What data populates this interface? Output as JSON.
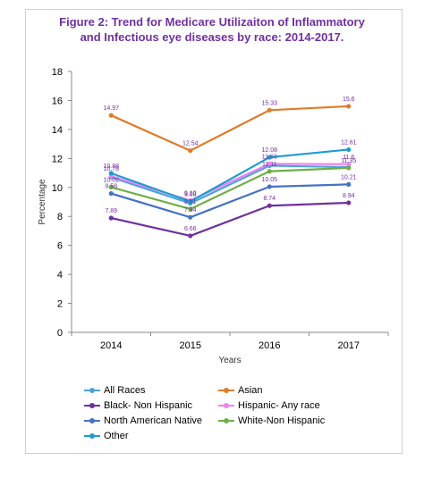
{
  "chart_data": {
    "type": "line",
    "title_lines": [
      "Figure 2: Trend for Medicare Utilizaiton of Inflammatory",
      "and Infectious eye diseases by race: 2014-2017."
    ],
    "xlabel": "Years",
    "ylabel": "Percentage",
    "x": [
      "2014",
      "2015",
      "2016",
      "2017"
    ],
    "ylim": [
      0,
      18
    ],
    "yticks": [
      "0",
      "2",
      "4",
      "6",
      "8",
      "10",
      "12",
      "14",
      "16",
      "18"
    ],
    "grid": false,
    "legend_position": "bottom",
    "series": [
      {
        "name": "All Races",
        "color": "#4aa3d8",
        "values": [
          10.7,
          8.9,
          11.5,
          11.4
        ],
        "labels": [
          "",
          "",
          "",
          ""
        ]
      },
      {
        "name": "Asian",
        "color": "#e07b2a",
        "values": [
          14.97,
          12.54,
          15.33,
          15.6
        ],
        "labels": [
          "14.97",
          "12.54",
          "15.33",
          "15.6"
        ]
      },
      {
        "name": "Black- Non Hispanic",
        "color": "#7030a0",
        "values": [
          7.89,
          6.66,
          8.74,
          8.94
        ],
        "labels": [
          "7.89",
          "6.66",
          "8.74",
          "8.94"
        ]
      },
      {
        "name": "Hispanic- Any race",
        "color": "#ee82ee",
        "values": [
          10.78,
          9.1,
          11.63,
          11.6
        ],
        "labels": [
          "10.78",
          "9.10",
          "11.63",
          "11.6"
        ]
      },
      {
        "name": "North American Native",
        "color": "#4472c4",
        "values": [
          9.58,
          7.94,
          10.05,
          10.21
        ],
        "labels": [
          "9.58",
          "7.94",
          "10.05",
          "10.21"
        ]
      },
      {
        "name": "White-Non Hispanic",
        "color": "#70ad47",
        "values": [
          10.02,
          8.51,
          11.11,
          11.35
        ],
        "labels": [
          "10.02",
          "8.51",
          "11.11",
          "11.35"
        ]
      },
      {
        "name": "Other",
        "color": "#1f9bd1",
        "values": [
          10.98,
          9.03,
          12.08,
          12.61
        ],
        "labels": [
          "10.98",
          "9.03",
          "12.08",
          "12.61"
        ]
      }
    ]
  }
}
